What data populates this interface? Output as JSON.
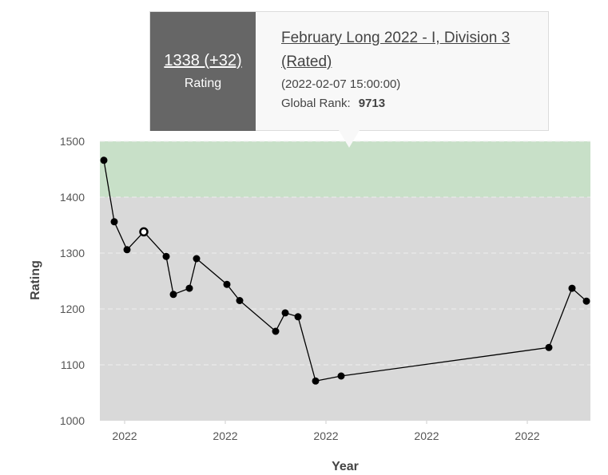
{
  "tooltip": {
    "rating_text": "1338 (+32)",
    "rating_label": "Rating",
    "contest": "February Long 2022 - I, Division 3 (Rated)",
    "datetime": "(2022-02-07 15:00:00)",
    "rank_label": "Global Rank:",
    "rank_value": "9713"
  },
  "chart_data": {
    "type": "line",
    "xlabel": "Year",
    "ylabel": "Rating",
    "ylim": [
      1000,
      1500
    ],
    "yticks": [
      1000,
      1100,
      1200,
      1300,
      1400,
      1500
    ],
    "xtick_labels": [
      "2022",
      "2022",
      "2022",
      "2022",
      "2022"
    ],
    "highlight_band": {
      "from": 1400,
      "to": 1500,
      "color": "#c8e0c8"
    },
    "plot_background": "#d9d9d9",
    "line_color": "#000000",
    "series": [
      {
        "values": [
          1466,
          1356,
          1306,
          1338,
          1294,
          1226,
          1237,
          1290,
          1244,
          1215,
          1160,
          1193,
          1186,
          1071,
          1080,
          1131,
          1237,
          1214
        ]
      }
    ],
    "highlighted_index": 3
  }
}
